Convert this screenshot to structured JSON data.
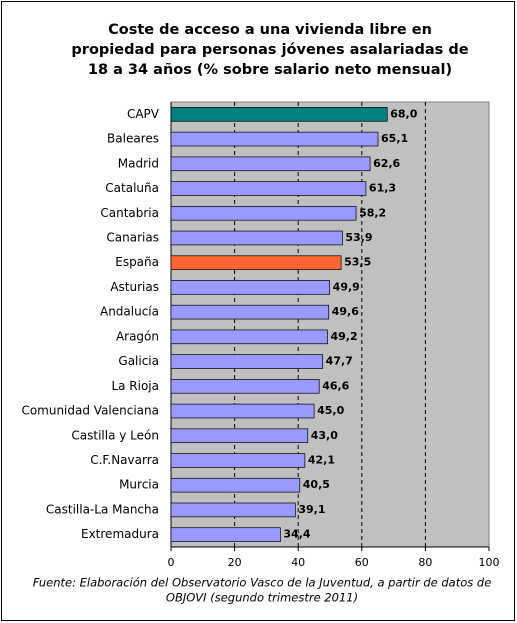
{
  "chart_data": {
    "type": "bar",
    "orientation": "horizontal",
    "title": [
      "Coste de acceso a una vivienda libre en",
      "propiedad para personas jóvenes asalariadas de",
      "18 a 34 años (% sobre salario neto mensual)"
    ],
    "categories": [
      "CAPV",
      "Baleares",
      "Madrid",
      "Cataluña",
      "Cantabria",
      "Canarias",
      "España",
      "Asturias",
      "Andalucía",
      "Aragón",
      "Galicia",
      "La Rioja",
      "Comunidad Valenciana",
      "Castilla y León",
      "C.F.Navarra",
      "Murcia",
      "Castilla-La Mancha",
      "Extremadura"
    ],
    "values": [
      68.0,
      65.1,
      62.6,
      61.3,
      58.2,
      53.9,
      53.5,
      49.9,
      49.6,
      49.2,
      47.7,
      46.6,
      45.0,
      43.0,
      42.1,
      40.5,
      39.1,
      34.4
    ],
    "value_labels": [
      "68,0",
      "65,1",
      "62,6",
      "61,3",
      "58,2",
      "53,9",
      "53,5",
      "49,9",
      "49,6",
      "49,2",
      "47,7",
      "46,6",
      "45,0",
      "43,0",
      "42,1",
      "40,5",
      "39,1",
      "34,4"
    ],
    "colors": [
      "#008080",
      "#9999ff",
      "#9999ff",
      "#9999ff",
      "#9999ff",
      "#9999ff",
      "#ff6633",
      "#9999ff",
      "#9999ff",
      "#9999ff",
      "#9999ff",
      "#9999ff",
      "#9999ff",
      "#9999ff",
      "#9999ff",
      "#9999ff",
      "#9999ff",
      "#9999ff"
    ],
    "xlim": [
      0,
      100
    ],
    "xticks": [
      0,
      20,
      40,
      60,
      80,
      100
    ],
    "grid": true,
    "plot_background": "#c0c0c0",
    "note": [
      "Fuente: Elaboración del Observatorio Vasco de la Juventud, a partir de datos de",
      "OBJOVI (segundo trimestre 2011)"
    ]
  }
}
